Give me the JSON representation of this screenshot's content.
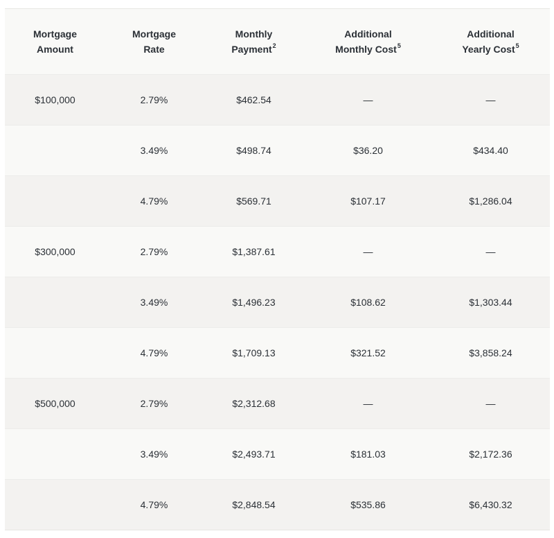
{
  "table": {
    "headers": [
      {
        "line1": "Mortgage",
        "line2": "Amount",
        "sup": ""
      },
      {
        "line1": "Mortgage",
        "line2": "Rate",
        "sup": ""
      },
      {
        "line1": "Monthly",
        "line2": "Payment",
        "sup": "2"
      },
      {
        "line1": "Additional",
        "line2": "Monthly Cost",
        "sup": "5"
      },
      {
        "line1": "Additional",
        "line2": "Yearly Cost",
        "sup": "5"
      }
    ],
    "rows": [
      {
        "amount": "$100,000",
        "rate": "2.79%",
        "payment": "$462.54",
        "add_monthly": "—",
        "add_yearly": "—"
      },
      {
        "amount": "",
        "rate": "3.49%",
        "payment": "$498.74",
        "add_monthly": "$36.20",
        "add_yearly": "$434.40"
      },
      {
        "amount": "",
        "rate": "4.79%",
        "payment": "$569.71",
        "add_monthly": "$107.17",
        "add_yearly": "$1,286.04"
      },
      {
        "amount": "$300,000",
        "rate": "2.79%",
        "payment": "$1,387.61",
        "add_monthly": "—",
        "add_yearly": "—"
      },
      {
        "amount": "",
        "rate": "3.49%",
        "payment": "$1,496.23",
        "add_monthly": "$108.62",
        "add_yearly": "$1,303.44"
      },
      {
        "amount": "",
        "rate": "4.79%",
        "payment": "$1,709.13",
        "add_monthly": "$321.52",
        "add_yearly": "$3,858.24"
      },
      {
        "amount": "$500,000",
        "rate": "2.79%",
        "payment": "$2,312.68",
        "add_monthly": "—",
        "add_yearly": "—"
      },
      {
        "amount": "",
        "rate": "3.49%",
        "payment": "$2,493.71",
        "add_monthly": "$181.03",
        "add_yearly": "$2,172.36"
      },
      {
        "amount": "",
        "rate": "4.79%",
        "payment": "$2,848.54",
        "add_monthly": "$535.86",
        "add_yearly": "$6,430.32"
      }
    ]
  }
}
